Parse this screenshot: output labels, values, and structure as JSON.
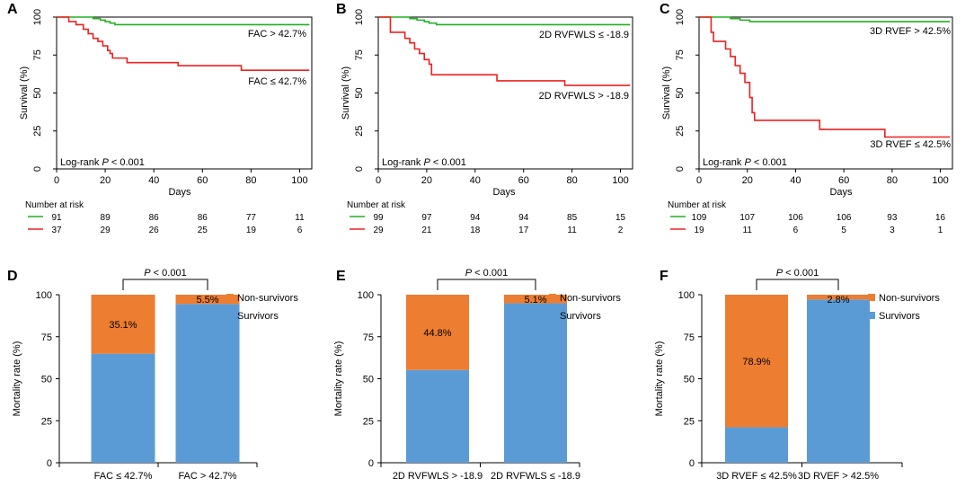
{
  "chart_data": [
    {
      "panel": "A",
      "type": "line",
      "subtype": "kaplan-meier",
      "xlabel": "Days",
      "ylabel": "Survival (%)",
      "xlim": [
        0,
        105
      ],
      "ylim": [
        0,
        100
      ],
      "xticks": [
        "0",
        "20",
        "40",
        "60",
        "80",
        "100"
      ],
      "yticks": [
        "0",
        "25",
        "50",
        "75",
        "100"
      ],
      "annotation_prefix": "Log-rank ",
      "annotation_p": "P",
      "annotation_suffix": " < 0.001",
      "series": [
        {
          "name": "FAC > 42.7%",
          "color": "#22b022",
          "points": [
            [
              0,
              100
            ],
            [
              10,
              100
            ],
            [
              15,
              99
            ],
            [
              18,
              98
            ],
            [
              20,
              97
            ],
            [
              22,
              96
            ],
            [
              24,
              95
            ],
            [
              104,
              95
            ]
          ]
        },
        {
          "name": "FAC ≤ 42.7%",
          "color": "#ee2020",
          "points": [
            [
              0,
              100
            ],
            [
              4,
              100
            ],
            [
              5,
              97
            ],
            [
              8,
              95
            ],
            [
              11,
              92
            ],
            [
              13,
              89
            ],
            [
              15,
              86
            ],
            [
              17,
              84
            ],
            [
              19,
              81
            ],
            [
              21,
              78
            ],
            [
              22,
              76
            ],
            [
              23,
              73
            ],
            [
              28,
              73
            ],
            [
              29,
              70
            ],
            [
              49,
              70
            ],
            [
              50,
              68
            ],
            [
              75,
              68
            ],
            [
              76,
              65
            ],
            [
              104,
              65
            ]
          ]
        }
      ],
      "risk_table": {
        "title": "Number at risk",
        "rows": [
          {
            "color": "#22b022",
            "values": [
              "91",
              "89",
              "86",
              "86",
              "77",
              "11"
            ]
          },
          {
            "color": "#ee2020",
            "values": [
              "37",
              "29",
              "26",
              "25",
              "19",
              "6"
            ]
          }
        ]
      }
    },
    {
      "panel": "B",
      "type": "line",
      "subtype": "kaplan-meier",
      "xlabel": "Days",
      "ylabel": "Survival (%)",
      "xlim": [
        0,
        105
      ],
      "ylim": [
        0,
        100
      ],
      "xticks": [
        "0",
        "20",
        "40",
        "60",
        "80",
        "100"
      ],
      "yticks": [
        "0",
        "25",
        "50",
        "75",
        "100"
      ],
      "annotation_prefix": "Log-rank ",
      "annotation_p": "P",
      "annotation_suffix": " < 0.001",
      "series": [
        {
          "name": "2D RVFWLS ≤ -18.9",
          "color": "#22b022",
          "points": [
            [
              0,
              100
            ],
            [
              10,
              100
            ],
            [
              13,
              99
            ],
            [
              16,
              98
            ],
            [
              19,
              97
            ],
            [
              21,
              96
            ],
            [
              24,
              95
            ],
            [
              104,
              95
            ]
          ]
        },
        {
          "name": "2D RVFWLS > -18.9",
          "color": "#ee2020",
          "points": [
            [
              0,
              100
            ],
            [
              4,
              100
            ],
            [
              5,
              90
            ],
            [
              10,
              90
            ],
            [
              11,
              86
            ],
            [
              13,
              83
            ],
            [
              15,
              79
            ],
            [
              17,
              76
            ],
            [
              19,
              72
            ],
            [
              21,
              69
            ],
            [
              22,
              62
            ],
            [
              48,
              62
            ],
            [
              49,
              58
            ],
            [
              76,
              58
            ],
            [
              77,
              55
            ],
            [
              104,
              55
            ]
          ]
        }
      ],
      "risk_table": {
        "title": "Number at risk",
        "rows": [
          {
            "color": "#22b022",
            "values": [
              "99",
              "97",
              "94",
              "94",
              "85",
              "15"
            ]
          },
          {
            "color": "#ee2020",
            "values": [
              "29",
              "21",
              "18",
              "17",
              "11",
              "2"
            ]
          }
        ]
      }
    },
    {
      "panel": "C",
      "type": "line",
      "subtype": "kaplan-meier",
      "xlabel": "Days",
      "ylabel": "Survival (%)",
      "xlim": [
        0,
        105
      ],
      "ylim": [
        0,
        100
      ],
      "xticks": [
        "0",
        "20",
        "40",
        "60",
        "80",
        "100"
      ],
      "yticks": [
        "0",
        "25",
        "50",
        "75",
        "100"
      ],
      "annotation_prefix": "Log-rank ",
      "annotation_p": "P",
      "annotation_suffix": " < 0.001",
      "series": [
        {
          "name": "3D RVEF > 42.5%",
          "color": "#22b022",
          "points": [
            [
              0,
              100
            ],
            [
              10,
              100
            ],
            [
              13,
              99
            ],
            [
              17,
              98
            ],
            [
              21,
              97
            ],
            [
              104,
              97
            ]
          ]
        },
        {
          "name": "3D RVEF ≤ 42.5%",
          "color": "#ee2020",
          "points": [
            [
              0,
              100
            ],
            [
              4,
              100
            ],
            [
              5,
              90
            ],
            [
              6,
              84
            ],
            [
              10,
              84
            ],
            [
              11,
              79
            ],
            [
              13,
              74
            ],
            [
              15,
              68
            ],
            [
              17,
              63
            ],
            [
              19,
              57
            ],
            [
              21,
              47
            ],
            [
              22,
              37
            ],
            [
              23,
              32
            ],
            [
              49,
              32
            ],
            [
              50,
              26
            ],
            [
              76,
              26
            ],
            [
              77,
              21
            ],
            [
              104,
              21
            ]
          ]
        }
      ],
      "risk_table": {
        "title": "Number at risk",
        "rows": [
          {
            "color": "#22b022",
            "values": [
              "109",
              "107",
              "106",
              "106",
              "93",
              "16"
            ]
          },
          {
            "color": "#ee2020",
            "values": [
              "19",
              "11",
              "6",
              "5",
              "3",
              "1"
            ]
          }
        ]
      }
    },
    {
      "panel": "D",
      "type": "bar",
      "subtype": "stacked",
      "ylabel": "Mortality rate (%)",
      "ylim": [
        0,
        100
      ],
      "yticks": [
        "0",
        "25",
        "50",
        "75",
        "100"
      ],
      "categories": [
        "FAC ≤ 42.7%",
        "FAC > 42.7%"
      ],
      "series": [
        {
          "name": "Survivors",
          "color": "#5b9bd5",
          "values": [
            64.9,
            94.5
          ]
        },
        {
          "name": "Non-survivors",
          "color": "#ed7d31",
          "values": [
            35.1,
            5.5
          ]
        }
      ],
      "data_labels": [
        "35.1%",
        "5.5%"
      ],
      "sig_prefix": "P",
      "sig_suffix": " < 0.001",
      "legend": "top-right"
    },
    {
      "panel": "E",
      "type": "bar",
      "subtype": "stacked",
      "ylabel": "Mortality rate (%)",
      "ylim": [
        0,
        100
      ],
      "yticks": [
        "0",
        "25",
        "50",
        "75",
        "100"
      ],
      "categories": [
        "2D RVFWLS > -18.9",
        "2D RVFWLS ≤ -18.9"
      ],
      "series": [
        {
          "name": "Survivors",
          "color": "#5b9bd5",
          "values": [
            55.2,
            94.9
          ]
        },
        {
          "name": "Non-survivors",
          "color": "#ed7d31",
          "values": [
            44.8,
            5.1
          ]
        }
      ],
      "data_labels": [
        "44.8%",
        "5.1%"
      ],
      "sig_prefix": "P",
      "sig_suffix": " < 0.001",
      "legend": "top-right"
    },
    {
      "panel": "F",
      "type": "bar",
      "subtype": "stacked",
      "ylabel": "Mortality rate (%)",
      "ylim": [
        0,
        100
      ],
      "yticks": [
        "0",
        "25",
        "50",
        "75",
        "100"
      ],
      "categories": [
        "3D RVEF ≤ 42.5%",
        "3D RVEF > 42.5%"
      ],
      "series": [
        {
          "name": "Survivors",
          "color": "#5b9bd5",
          "values": [
            21.1,
            97.2
          ]
        },
        {
          "name": "Non-survivors",
          "color": "#ed7d31",
          "values": [
            78.9,
            2.8
          ]
        }
      ],
      "data_labels": [
        "78.9%",
        "2.8%"
      ],
      "sig_prefix": "P",
      "sig_suffix": " < 0.001",
      "legend": "top-right"
    }
  ]
}
